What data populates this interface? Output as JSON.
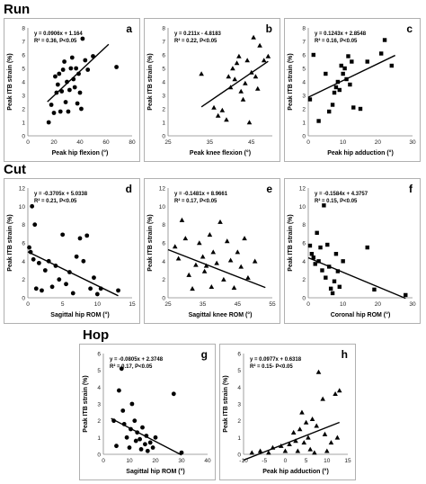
{
  "sections": [
    {
      "label": "Run"
    },
    {
      "label": "Cut"
    },
    {
      "label": "Hop"
    }
  ],
  "chart_data": [
    {
      "letter": "a",
      "type": "scatter",
      "marker": "circle",
      "equation": "y = 0.0906x + 1.164",
      "stats": "R² = 0.36, P<0.05",
      "xlabel": "Peak hip flexion (°)",
      "ylabel": "Peak ITB strain (%)",
      "xlim": [
        0,
        80
      ],
      "ylim": [
        0,
        8
      ],
      "xticks": [
        0,
        20,
        40,
        60,
        80
      ],
      "yticks": [
        0,
        1,
        2,
        3,
        4,
        5,
        6,
        7,
        8
      ],
      "trend": {
        "slope": 0.0906,
        "intercept": 1.164,
        "x_start": 15,
        "x_end": 62
      },
      "points": [
        [
          16,
          1.0
        ],
        [
          18,
          2.3
        ],
        [
          20,
          1.7
        ],
        [
          21,
          4.4
        ],
        [
          22,
          3.2
        ],
        [
          23,
          3.8
        ],
        [
          24,
          4.6
        ],
        [
          25,
          1.8
        ],
        [
          26,
          3.3
        ],
        [
          27,
          4.9
        ],
        [
          28,
          5.5
        ],
        [
          29,
          2.5
        ],
        [
          30,
          4.0
        ],
        [
          31,
          1.8
        ],
        [
          32,
          3.4
        ],
        [
          33,
          5.0
        ],
        [
          34,
          5.8
        ],
        [
          35,
          4.2
        ],
        [
          36,
          3.6
        ],
        [
          37,
          5.0
        ],
        [
          38,
          2.4
        ],
        [
          39,
          4.6
        ],
        [
          40,
          3.2
        ],
        [
          41,
          2.0
        ],
        [
          42,
          7.2
        ],
        [
          44,
          5.6
        ],
        [
          46,
          4.9
        ],
        [
          50,
          5.9
        ],
        [
          68,
          5.1
        ]
      ]
    },
    {
      "letter": "b",
      "type": "scatter",
      "marker": "triangle",
      "equation": "y = 0.211x - 4.8183",
      "stats": "R² = 0.22, P<0.05",
      "xlabel": "Peak knee flexion (°)",
      "ylabel": "Peak ITB strain (%)",
      "xlim": [
        25,
        50
      ],
      "ylim": [
        0,
        8
      ],
      "xticks": [
        25,
        35,
        45
      ],
      "yticks": [
        0,
        1,
        2,
        3,
        4,
        5,
        6,
        7,
        8
      ],
      "trend": {
        "slope": 0.211,
        "intercept": -4.8183,
        "x_start": 33,
        "x_end": 49
      },
      "points": [
        [
          33,
          4.6
        ],
        [
          36,
          2.1
        ],
        [
          37,
          1.5
        ],
        [
          38,
          1.9
        ],
        [
          39,
          1.2
        ],
        [
          39.5,
          4.4
        ],
        [
          40,
          3.6
        ],
        [
          40.5,
          5.0
        ],
        [
          41,
          4.2
        ],
        [
          41.5,
          5.4
        ],
        [
          42,
          5.9
        ],
        [
          42.5,
          3.3
        ],
        [
          43,
          2.7
        ],
        [
          43.5,
          3.9
        ],
        [
          44,
          5.6
        ],
        [
          44.5,
          1.0
        ],
        [
          45,
          4.7
        ],
        [
          45.5,
          7.3
        ],
        [
          46,
          4.4
        ],
        [
          46.5,
          3.5
        ],
        [
          47,
          6.7
        ],
        [
          48,
          5.6
        ],
        [
          49,
          5.9
        ]
      ]
    },
    {
      "letter": "c",
      "type": "scatter",
      "marker": "square",
      "equation": "y = 0.1243x + 2.8548",
      "stats": "R² = 0.16, P<0.05",
      "xlabel": "Peak hip adduction (°)",
      "ylabel": "Peak ITB strain (%)",
      "xlim": [
        0,
        30
      ],
      "ylim": [
        0,
        8
      ],
      "xticks": [
        0,
        10,
        20,
        30
      ],
      "yticks": [
        0,
        1,
        2,
        3,
        4,
        5,
        6,
        7,
        8
      ],
      "trend": {
        "slope": 0.1243,
        "intercept": 2.8548,
        "x_start": 0,
        "x_end": 25
      },
      "points": [
        [
          0.5,
          2.7
        ],
        [
          1.5,
          6.0
        ],
        [
          3,
          1.1
        ],
        [
          5,
          4.6
        ],
        [
          6,
          1.8
        ],
        [
          7,
          2.3
        ],
        [
          7.5,
          3.2
        ],
        [
          8,
          3.6
        ],
        [
          8.5,
          4.0
        ],
        [
          9,
          3.4
        ],
        [
          9.5,
          5.2
        ],
        [
          10,
          4.6
        ],
        [
          10.5,
          5.0
        ],
        [
          11,
          4.2
        ],
        [
          11.5,
          5.9
        ],
        [
          12,
          3.8
        ],
        [
          12.5,
          5.5
        ],
        [
          13,
          2.1
        ],
        [
          15,
          2.0
        ],
        [
          17,
          5.5
        ],
        [
          21,
          6.1
        ],
        [
          22,
          7.1
        ],
        [
          24,
          5.2
        ]
      ]
    },
    {
      "letter": "d",
      "type": "scatter",
      "marker": "circle",
      "equation": "y = -0.3705x + 5.0338",
      "stats": "R² = 0.21, P<0.05",
      "xlabel": "Sagittal hip ROM (°)",
      "ylabel": "Peak ITB strain (%)",
      "xlim": [
        0,
        15
      ],
      "ylim": [
        0,
        12
      ],
      "xticks": [
        0,
        5,
        10,
        15
      ],
      "yticks": [
        0,
        2,
        4,
        6,
        8,
        10,
        12
      ],
      "trend": {
        "slope": -0.3705,
        "intercept": 5.0338,
        "x_start": 0,
        "x_end": 13
      },
      "points": [
        [
          0.2,
          5.5
        ],
        [
          0.4,
          5.0
        ],
        [
          0.6,
          10.0
        ],
        [
          0.8,
          4.2
        ],
        [
          1,
          8.0
        ],
        [
          1.2,
          1.0
        ],
        [
          1.6,
          3.8
        ],
        [
          2,
          0.8
        ],
        [
          2.5,
          3.0
        ],
        [
          3,
          4.0
        ],
        [
          3.5,
          1.2
        ],
        [
          4,
          3.5
        ],
        [
          4.5,
          2.0
        ],
        [
          5,
          6.9
        ],
        [
          5.5,
          1.5
        ],
        [
          6,
          2.8
        ],
        [
          6.5,
          0.5
        ],
        [
          7,
          4.5
        ],
        [
          7.5,
          6.5
        ],
        [
          8,
          4.0
        ],
        [
          8.5,
          6.8
        ],
        [
          9,
          1.0
        ],
        [
          9.5,
          2.2
        ],
        [
          10,
          0.4
        ],
        [
          10.5,
          1.0
        ],
        [
          13,
          0.8
        ]
      ]
    },
    {
      "letter": "e",
      "type": "scatter",
      "marker": "triangle",
      "equation": "y = -0.1481x + 8.9661",
      "stats": "R² = 0.17, P<0.05",
      "xlabel": "Sagittal knee ROM (°)",
      "ylabel": "Peak ITB strain (%)",
      "xlim": [
        25,
        55
      ],
      "ylim": [
        0,
        12
      ],
      "xticks": [
        25,
        35,
        45,
        55
      ],
      "yticks": [
        0,
        2,
        4,
        6,
        8,
        10,
        12
      ],
      "trend": {
        "slope": -0.1481,
        "intercept": 8.9661,
        "x_start": 25,
        "x_end": 53
      },
      "points": [
        [
          27,
          5.6
        ],
        [
          28,
          4.3
        ],
        [
          29,
          8.5
        ],
        [
          30,
          6.5
        ],
        [
          31,
          2.5
        ],
        [
          32,
          1.0
        ],
        [
          33,
          3.6
        ],
        [
          34,
          6.0
        ],
        [
          35,
          4.5
        ],
        [
          35.5,
          2.9
        ],
        [
          36,
          3.5
        ],
        [
          37,
          6.9
        ],
        [
          37.5,
          1.2
        ],
        [
          38,
          5.0
        ],
        [
          39,
          3.8
        ],
        [
          40,
          8.3
        ],
        [
          41,
          2.0
        ],
        [
          42,
          6.2
        ],
        [
          43,
          4.1
        ],
        [
          44,
          1.1
        ],
        [
          45,
          5.0
        ],
        [
          46,
          3.4
        ],
        [
          47,
          6.5
        ],
        [
          48,
          2.2
        ],
        [
          50,
          4.0
        ]
      ]
    },
    {
      "letter": "f",
      "type": "scatter",
      "marker": "square",
      "equation": "y = -0.1584x + 4.3757",
      "stats": "R² = 0.15, P<0.05",
      "xlabel": "Coronal hip ROM (°)",
      "ylabel": "Peak ITB strain (%)",
      "xlim": [
        0,
        30
      ],
      "ylim": [
        0,
        12
      ],
      "xticks": [
        0,
        10,
        20,
        30
      ],
      "yticks": [
        0,
        2,
        4,
        6,
        8,
        10,
        12
      ],
      "trend": {
        "slope": -0.1584,
        "intercept": 4.3757,
        "x_start": 0,
        "x_end": 28
      },
      "points": [
        [
          0.5,
          5.7
        ],
        [
          1,
          4.8
        ],
        [
          1.5,
          4.4
        ],
        [
          2,
          3.7
        ],
        [
          2.5,
          7.1
        ],
        [
          3,
          4.0
        ],
        [
          3.5,
          5.5
        ],
        [
          4,
          3.0
        ],
        [
          4.5,
          10.1
        ],
        [
          5,
          2.2
        ],
        [
          5.5,
          5.8
        ],
        [
          6,
          3.4
        ],
        [
          6.5,
          1.0
        ],
        [
          7,
          0.5
        ],
        [
          7.5,
          1.8
        ],
        [
          8,
          4.8
        ],
        [
          8.5,
          2.9
        ],
        [
          9,
          1.2
        ],
        [
          10,
          4.0
        ],
        [
          17,
          5.5
        ],
        [
          19,
          0.9
        ],
        [
          28,
          0.3
        ]
      ]
    },
    {
      "letter": "g",
      "type": "scatter",
      "marker": "circle",
      "equation": "y = -0.0805x + 2.3748",
      "stats": "R² = 0.17, P<0.05",
      "xlabel": "Sagittal hip ROM (°)",
      "ylabel": "Peak ITB strain (%)",
      "xlim": [
        0,
        40
      ],
      "ylim": [
        0,
        6
      ],
      "xticks": [
        0,
        10,
        20,
        30,
        40
      ],
      "yticks": [
        0,
        1,
        2,
        3,
        4,
        5,
        6
      ],
      "trend": {
        "slope": -0.0805,
        "intercept": 2.3748,
        "x_start": 3,
        "x_end": 30
      },
      "points": [
        [
          4,
          2.0
        ],
        [
          5,
          0.5
        ],
        [
          6,
          3.8
        ],
        [
          7,
          5.1
        ],
        [
          7.5,
          2.6
        ],
        [
          8,
          1.8
        ],
        [
          9,
          1.0
        ],
        [
          10,
          0.4
        ],
        [
          10.5,
          1.5
        ],
        [
          11,
          3.0
        ],
        [
          12,
          2.0
        ],
        [
          12.5,
          0.8
        ],
        [
          13,
          1.3
        ],
        [
          14,
          0.9
        ],
        [
          14.5,
          0.3
        ],
        [
          15,
          1.6
        ],
        [
          16,
          0.6
        ],
        [
          16.5,
          1.1
        ],
        [
          17,
          0.2
        ],
        [
          18,
          0.7
        ],
        [
          19,
          0.4
        ],
        [
          20,
          1.0
        ],
        [
          27,
          3.6
        ],
        [
          30,
          0.1
        ]
      ]
    },
    {
      "letter": "h",
      "type": "scatter",
      "marker": "triangle",
      "equation": "y = 0.0977x + 0.6318",
      "stats": "R² = 0.15- P<0.05",
      "xlabel": "Peak hip adduction (°)",
      "ylabel": "Peak ITB strain (%)",
      "xlim": [
        -10,
        15
      ],
      "ylim": [
        0,
        6
      ],
      "xticks": [
        -10,
        -5,
        0,
        5,
        10,
        15
      ],
      "yticks": [
        0,
        1,
        2,
        3,
        4,
        5,
        6
      ],
      "trend": {
        "slope": 0.0977,
        "intercept": 0.6318,
        "x_start": -10,
        "x_end": 13
      },
      "points": [
        [
          -8,
          0.1
        ],
        [
          -6,
          0.2
        ],
        [
          -4,
          0.1
        ],
        [
          -3,
          0.4
        ],
        [
          -1,
          0.5
        ],
        [
          0,
          0.2
        ],
        [
          1,
          0.6
        ],
        [
          2,
          1.3
        ],
        [
          2.5,
          0.8
        ],
        [
          3,
          0.2
        ],
        [
          3.5,
          1.5
        ],
        [
          4,
          2.5
        ],
        [
          4.5,
          0.7
        ],
        [
          5,
          1.9
        ],
        [
          5.5,
          1.0
        ],
        [
          6,
          0.3
        ],
        [
          6.5,
          2.1
        ],
        [
          7,
          0.1
        ],
        [
          7.5,
          1.7
        ],
        [
          8,
          4.9
        ],
        [
          9,
          3.3
        ],
        [
          9.5,
          1.2
        ],
        [
          10,
          0.2
        ],
        [
          11,
          0.7
        ],
        [
          12,
          3.6
        ],
        [
          12.5,
          1.0
        ],
        [
          13,
          3.8
        ]
      ]
    }
  ]
}
